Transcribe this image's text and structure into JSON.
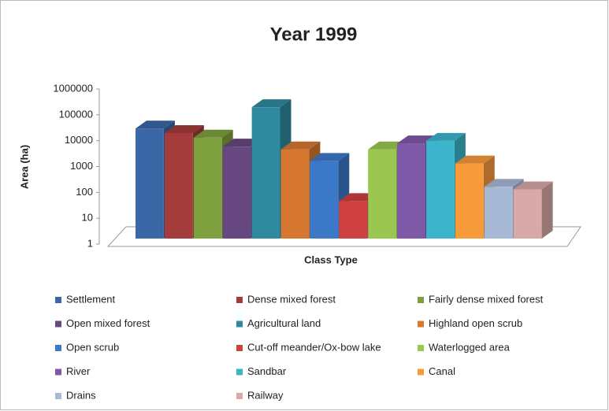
{
  "chart_data": {
    "type": "bar3d",
    "title": "Year 1999",
    "ylabel": "Area (ha)",
    "xlabel": "Class Type",
    "categories": [
      null
    ],
    "log_scale": true,
    "legend_position": "bottom",
    "ylim": [
      1,
      1000000
    ],
    "yticks": [
      1,
      10,
      100,
      1000,
      10000,
      100000,
      1000000
    ],
    "series": [
      {
        "name": "Settlement",
        "color": "#3a67a5",
        "values": [
          45000
        ]
      },
      {
        "name": "Dense mixed forest",
        "color": "#a33c3a",
        "values": [
          30000
        ]
      },
      {
        "name": "Fairly dense mixed forest",
        "color": "#7ea03e",
        "values": [
          20000
        ]
      },
      {
        "name": "Open mixed forest",
        "color": "#67477f",
        "values": [
          9000
        ]
      },
      {
        "name": "Agricultural land",
        "color": "#2f8a9f",
        "values": [
          300000
        ]
      },
      {
        "name": "Highland open scrub",
        "color": "#d6782f",
        "values": [
          7000
        ]
      },
      {
        "name": "Open scrub",
        "color": "#3c78c8",
        "values": [
          2500
        ]
      },
      {
        "name": "Cut-off meander/Ox-bow lake",
        "color": "#cf4040",
        "values": [
          70
        ]
      },
      {
        "name": "Waterlogged area",
        "color": "#9bc650",
        "values": [
          7000
        ]
      },
      {
        "name": "River",
        "color": "#7e59a8",
        "values": [
          12000
        ]
      },
      {
        "name": "Sandbar",
        "color": "#3cb5cc",
        "values": [
          15000
        ]
      },
      {
        "name": "Canal",
        "color": "#f79a3a",
        "values": [
          2000
        ]
      },
      {
        "name": "Drains",
        "color": "#a8b9d8",
        "values": [
          250
        ]
      },
      {
        "name": "Railway",
        "color": "#d9a8a8",
        "values": [
          200
        ]
      }
    ]
  }
}
